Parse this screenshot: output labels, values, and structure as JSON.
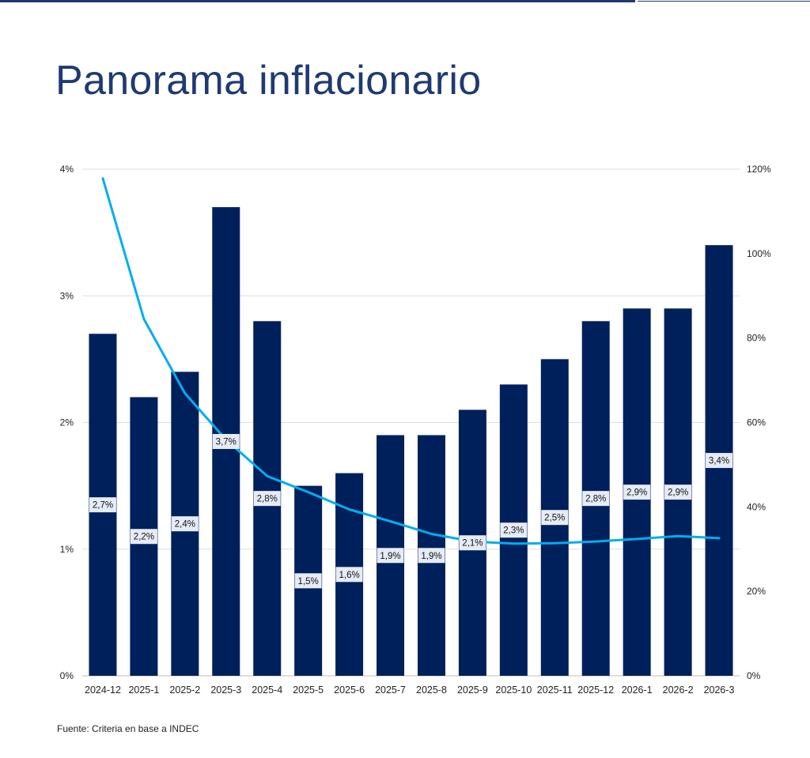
{
  "title": "Panorama inflacionario",
  "source": "Fuente: Criteria en base a INDEC",
  "colors": {
    "bar": "#00205b",
    "line": "#00aeef",
    "title": "#1f3a73",
    "grid": "#dddddd",
    "label_bg": "#e6ecf5"
  },
  "chart_data": {
    "type": "bar",
    "categories": [
      "2024-12",
      "2025-1",
      "2025-2",
      "2025-3",
      "2025-4",
      "2025-5",
      "2025-6",
      "2025-7",
      "2025-8",
      "2025-9",
      "2025-10",
      "2025-11",
      "2025-12",
      "2026-1",
      "2026-2",
      "2026-3"
    ],
    "series": [
      {
        "type": "bar",
        "axis": "left",
        "values": [
          2.7,
          2.2,
          2.4,
          3.7,
          2.8,
          1.5,
          1.6,
          1.9,
          1.9,
          2.1,
          2.3,
          2.5,
          2.8,
          2.9,
          2.9,
          3.4
        ],
        "data_labels": [
          "2,7%",
          "2,2%",
          "2,4%",
          "3,7%",
          "2,8%",
          "1,5%",
          "1,6%",
          "1,9%",
          "1,9%",
          "2,1%",
          "2,3%",
          "2,5%",
          "2,8%",
          "2,9%",
          "2,9%",
          "3,4%"
        ]
      },
      {
        "type": "line",
        "axis": "right",
        "values": [
          117.8,
          84.5,
          66.9,
          55.9,
          47.3,
          43.5,
          39.4,
          36.6,
          33.6,
          31.8,
          31.3,
          31.4,
          31.8,
          32.4,
          33.1,
          32.6
        ]
      }
    ],
    "y_left": {
      "lim": [
        0,
        4
      ],
      "ticks": [
        0,
        1,
        2,
        3,
        4
      ],
      "tick_labels": [
        "0%",
        "1%",
        "2%",
        "3%",
        "4%"
      ]
    },
    "y_right": {
      "lim": [
        0,
        120
      ],
      "ticks": [
        0,
        20,
        40,
        60,
        80,
        100,
        120
      ],
      "tick_labels": [
        "0%",
        "20%",
        "40%",
        "60%",
        "80%",
        "100%",
        "120%"
      ]
    },
    "grid": true,
    "legend": "none"
  }
}
